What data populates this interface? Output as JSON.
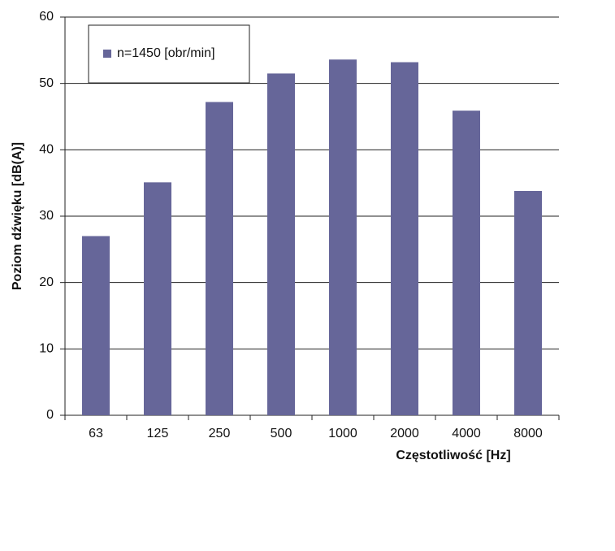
{
  "chart_data": {
    "type": "bar",
    "x_label": "Częstotliwość [Hz]",
    "y_label": "Poziom dźwięku [dB(A)]",
    "categories": [
      "63",
      "125",
      "250",
      "500",
      "1000",
      "2000",
      "4000",
      "8000"
    ],
    "series": [
      {
        "name": "n=1450 [obr/min]",
        "color": "#666699",
        "values": [
          27,
          35.1,
          47.2,
          51.5,
          53.6,
          53.2,
          45.9,
          33.8
        ]
      }
    ],
    "ylim": [
      0,
      60
    ],
    "yticks": [
      0,
      10,
      20,
      30,
      40,
      50,
      60
    ],
    "grid": true,
    "legend": "upper left"
  }
}
